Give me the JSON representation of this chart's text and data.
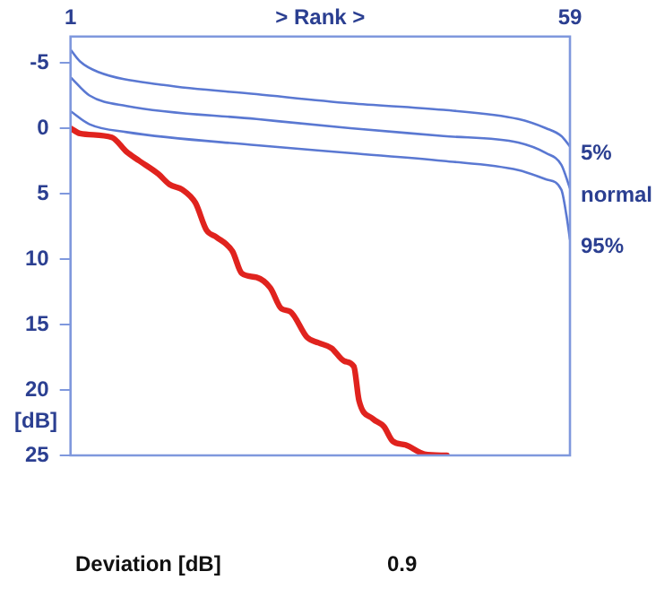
{
  "chart_data": {
    "type": "line",
    "xlabel": "> Rank >",
    "ylabel": "[dB]",
    "xlim": [
      1,
      59
    ],
    "xticks": [
      1,
      59
    ],
    "ylim": [
      25,
      -7
    ],
    "yticks": [
      -5,
      0,
      5,
      10,
      15,
      20,
      25
    ],
    "grid": false,
    "legend": false,
    "marker": "none",
    "line_style": "solid",
    "series": [
      {
        "name": "5%",
        "color": "#5a78d2",
        "x": [
          1,
          2.1,
          4.2,
          11.8,
          22.6,
          33.5,
          44.3,
          53,
          56.2,
          58,
          59
        ],
        "values": [
          -6.0,
          -5.1,
          -4.3,
          -3.3,
          -2.6,
          -1.9,
          -1.4,
          -0.7,
          0,
          0.6,
          1.4
        ]
      },
      {
        "name": "normal",
        "color": "#5a78d2",
        "x": [
          1,
          3.2,
          7.5,
          22.6,
          33.5,
          44.3,
          53,
          56.2,
          58,
          59
        ],
        "values": [
          -3.9,
          -2.5,
          -1.7,
          -0.7,
          0,
          0.6,
          1.1,
          1.9,
          2.8,
          4.6
        ]
      },
      {
        "name": "95%",
        "color": "#5a78d2",
        "x": [
          1,
          3.2,
          7.5,
          22.6,
          33.5,
          44.3,
          53,
          56.2,
          58,
          58.6,
          59
        ],
        "values": [
          -1.3,
          -0.3,
          0.3,
          1.3,
          1.9,
          2.5,
          3.2,
          3.9,
          4.7,
          6.7,
          8.5
        ]
      },
      {
        "color": "#e0231e",
        "x": [
          1,
          2.1,
          5.8,
          7.5,
          9,
          11.2,
          12.5,
          14,
          15.5,
          16.8,
          17.9,
          19.8,
          20.9,
          22.6,
          24.2,
          25.5,
          26.5,
          28.5,
          29.8,
          31.3,
          32.8,
          33.9,
          34.5,
          36.1,
          37.4,
          38.4,
          39.9,
          42.1,
          44.7
        ],
        "values": [
          0,
          0.4,
          0.7,
          1.8,
          2.5,
          3.5,
          4.3,
          4.7,
          5.7,
          7.8,
          8.3,
          9.4,
          11.1,
          11.4,
          12.2,
          13.8,
          14,
          16,
          16.4,
          16.8,
          17.8,
          18.2,
          20.8,
          22.2,
          22.8,
          23.9,
          24.2,
          24.9,
          25
        ]
      }
    ],
    "annotations": [
      "Deviation [dB]",
      "0.9"
    ]
  }
}
